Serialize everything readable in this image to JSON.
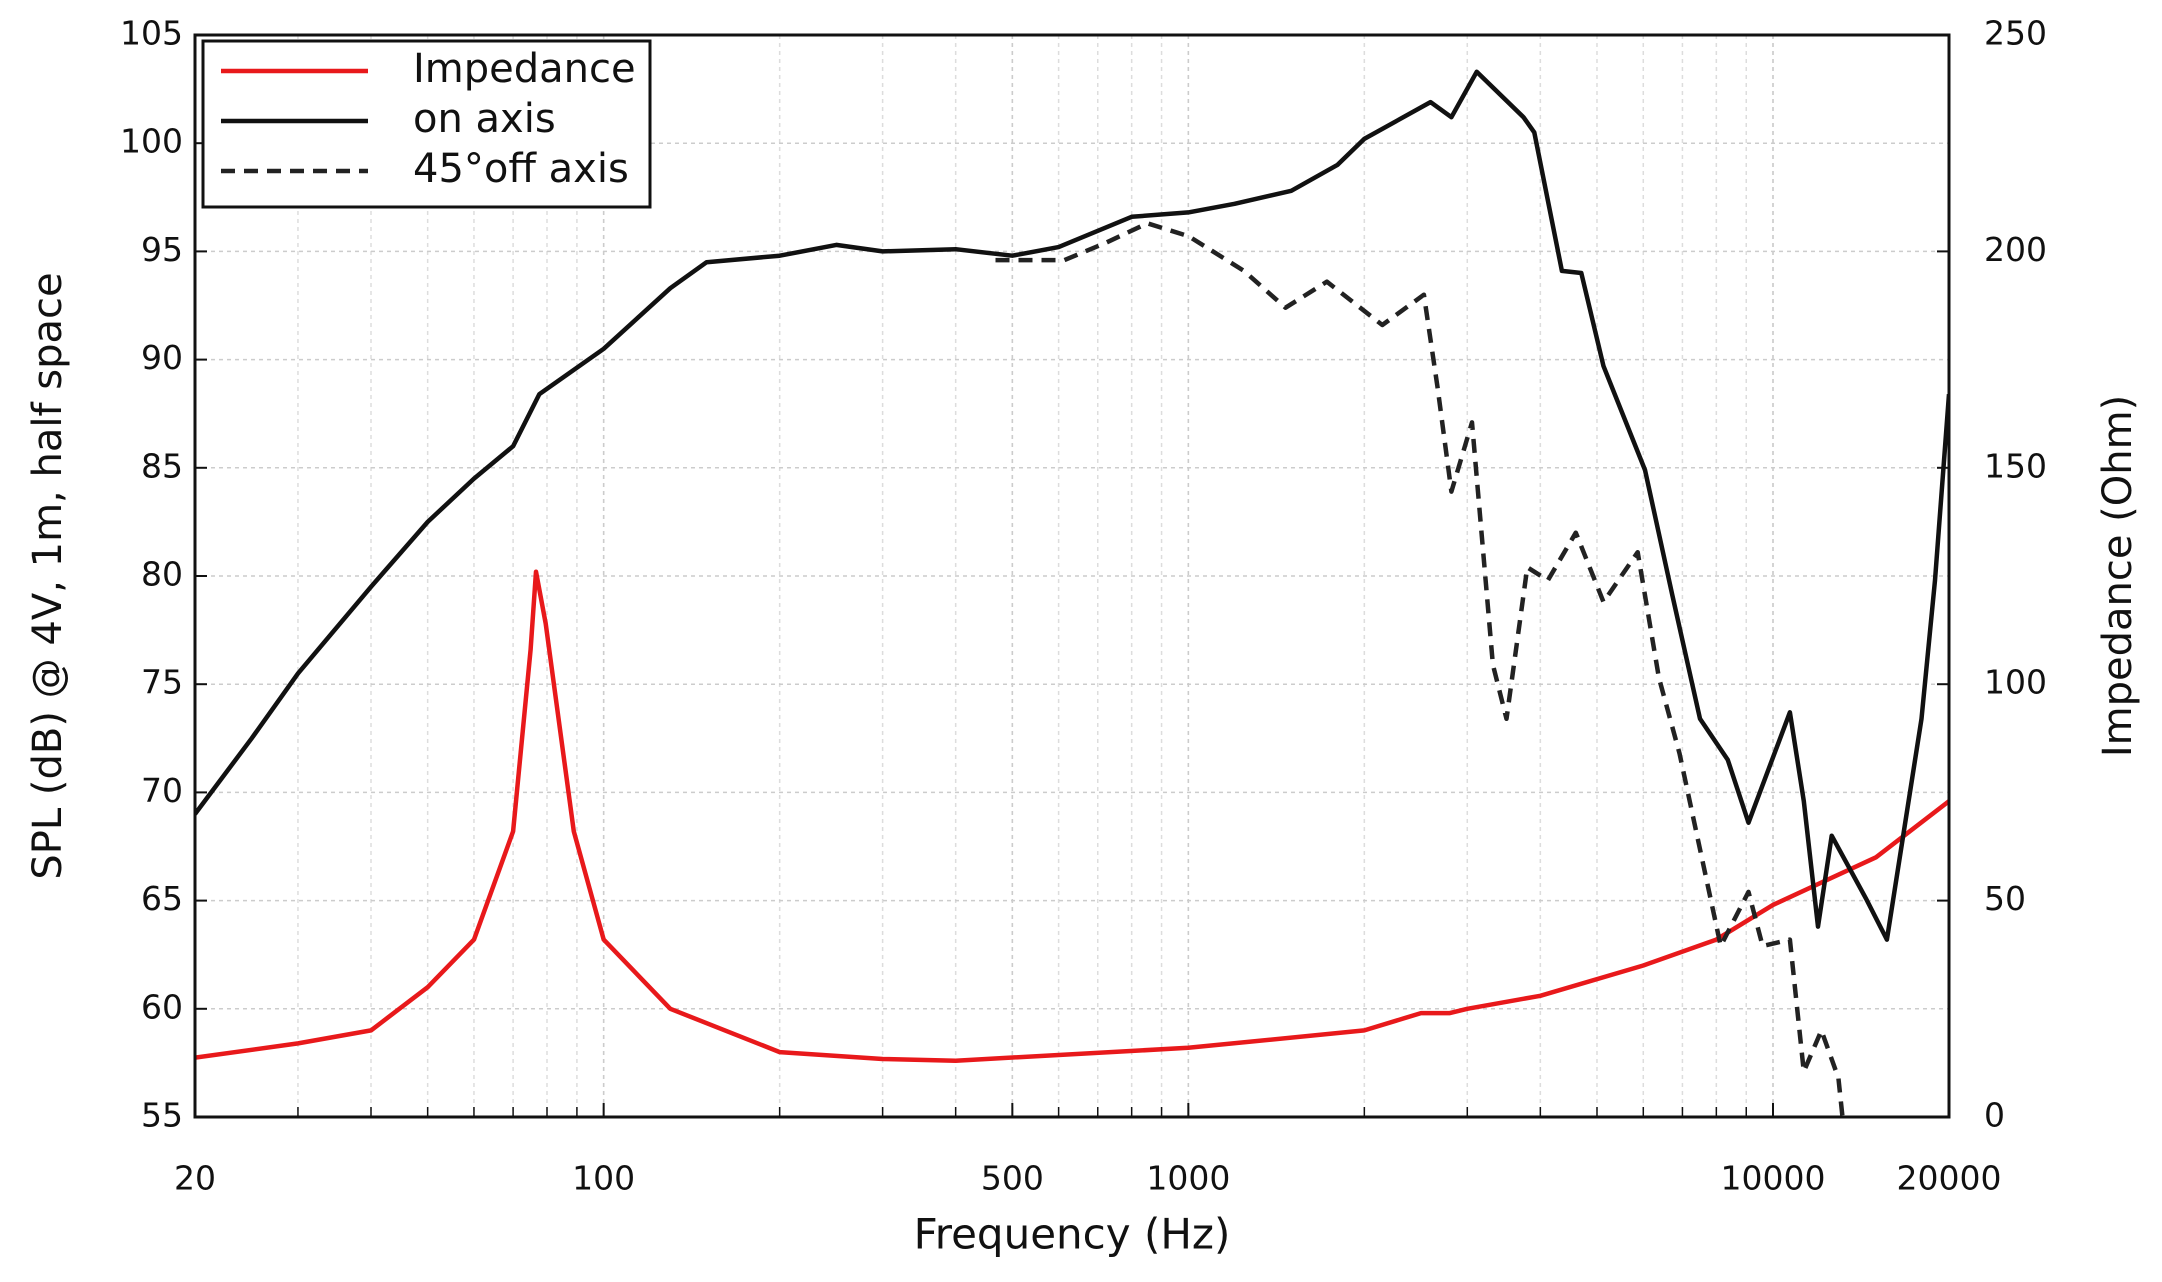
{
  "chart_data": {
    "type": "line",
    "x_label": "Frequency (Hz)",
    "y_label": "SPL (dB) @ 4V, 1m, half space",
    "y2_label": "Impedance (Ohm)",
    "xscale": "log",
    "xlim": [
      20,
      20000
    ],
    "xticks": [
      20,
      100,
      500,
      1000,
      10000,
      20000
    ],
    "ylim": [
      55,
      105
    ],
    "yticks": [
      55,
      60,
      65,
      70,
      75,
      80,
      85,
      90,
      95,
      100,
      105
    ],
    "y2lim": [
      0,
      250
    ],
    "y2ticks": [
      0,
      50,
      100,
      150,
      200,
      250
    ],
    "grid": true,
    "legend": "top-left",
    "series": [
      {
        "name": "Impedance",
        "color": "#e8191b",
        "style": "solid",
        "axis": "y2",
        "x": [
          20,
          30,
          40,
          50,
          60,
          70,
          75,
          76.6,
          79.6,
          88.9,
          100,
          130,
          200,
          300,
          400,
          1000,
          2000,
          2500,
          2800,
          3000,
          4000,
          6000,
          8000,
          10000,
          15000,
          20000
        ],
        "values": [
          13.7,
          17,
          20,
          30,
          41,
          66,
          108,
          126,
          114,
          66,
          41,
          25,
          15,
          13.4,
          13,
          16,
          20,
          24,
          24,
          25,
          28,
          35,
          41,
          49,
          60,
          73
        ]
      },
      {
        "name": "on axis",
        "color": "#111111",
        "style": "solid",
        "x": [
          20,
          25,
          30,
          40,
          50,
          60,
          70,
          77.6,
          100,
          130,
          150,
          200,
          250,
          300,
          400,
          500,
          600,
          800,
          1000,
          1200,
          1500,
          1800,
          2000,
          2595,
          2818,
          3113,
          3744,
          3906,
          4355,
          4700,
          5130,
          6040,
          6730,
          7500,
          8370,
          9080,
          10690,
          11290,
          11940,
          12600,
          14420,
          15660,
          17950,
          18930,
          20000
        ],
        "values": [
          69,
          72.5,
          75.5,
          79.5,
          82.5,
          84.5,
          86,
          88.4,
          90.5,
          93.3,
          94.5,
          94.8,
          95.3,
          95,
          95.1,
          94.8,
          95.2,
          96.6,
          96.8,
          97.2,
          97.8,
          99,
          100.2,
          101.9,
          101.2,
          103.3,
          101.2,
          100.5,
          94.1,
          94,
          89.7,
          84.9,
          79.1,
          73.4,
          71.5,
          68.6,
          73.7,
          69.6,
          63.8,
          68,
          65.1,
          63.2,
          73.4,
          79.8,
          88.4
        ]
      },
      {
        "name": "45°off axis",
        "color": "#222222",
        "style": "dashed",
        "x": [
          468,
          614,
          723,
          851,
          1002,
          1245,
          1466,
          1726,
          2147,
          2529,
          2669,
          2818,
          3056,
          3319,
          3501,
          3800,
          4121,
          4600,
          5130,
          5870,
          6380,
          6920,
          8140,
          9080,
          9600,
          10690,
          11290,
          12100,
          12940,
          13150
        ],
        "values": [
          94.6,
          94.6,
          95.4,
          96.3,
          95.7,
          94.1,
          92.4,
          93.6,
          91.6,
          93,
          88.7,
          83.9,
          87.1,
          75.9,
          73.4,
          80.4,
          79.8,
          82,
          78.8,
          81.1,
          75.3,
          71.8,
          62.9,
          65.4,
          62.9,
          63.2,
          57.1,
          59,
          56.8,
          55
        ]
      }
    ]
  }
}
